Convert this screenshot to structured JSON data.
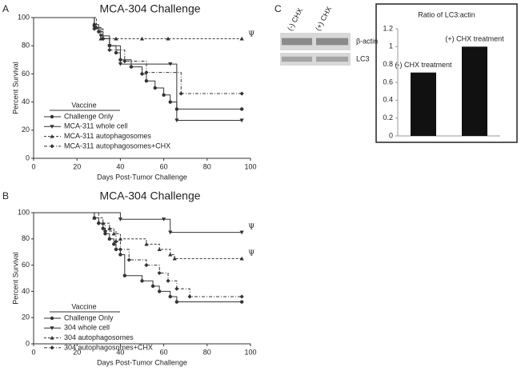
{
  "chart_data": [
    {
      "type": "step",
      "panel": "A",
      "title": "MCA-304 Challenge",
      "xlabel": "Days Post-Tumor Challenge",
      "ylabel": "Percent Survival",
      "xlim": [
        0,
        100
      ],
      "xticks": [
        0,
        20,
        40,
        60,
        80,
        100
      ],
      "ylim": [
        0,
        100
      ],
      "yticks": [
        0,
        20,
        40,
        60,
        80,
        100
      ],
      "legend_title": "Vaccine",
      "series": [
        {
          "name": "Challenge Only",
          "color": "#333333",
          "marker": "circle",
          "dash": "solid",
          "x": [
            0,
            28,
            30,
            32,
            35,
            38,
            40,
            45,
            50,
            52,
            56,
            60,
            63,
            66,
            96
          ],
          "values": [
            100,
            95,
            90,
            85,
            80,
            75,
            70,
            65,
            60,
            55,
            50,
            45,
            40,
            35,
            35
          ]
        },
        {
          "name": "MCA-311 whole cell",
          "color": "#333333",
          "marker": "triangle-down",
          "dash": "solid",
          "x": [
            0,
            28,
            31,
            35,
            40,
            63,
            66,
            96
          ],
          "values": [
            100,
            93,
            87,
            80,
            67,
            67,
            27,
            27
          ]
        },
        {
          "name": "MCA-311 autophagosomes",
          "color": "#333333",
          "marker": "triangle-up",
          "dash": "dashed",
          "x": [
            0,
            29,
            31,
            38,
            50,
            62,
            96
          ],
          "values": [
            100,
            93,
            85,
            85,
            85,
            85,
            85
          ]
        },
        {
          "name": "MCA-311 autophagosomes+CHX",
          "color": "#333333",
          "marker": "diamond",
          "dash": "dashdot",
          "x": [
            0,
            28,
            32,
            35,
            42,
            52,
            68,
            96
          ],
          "values": [
            100,
            92,
            85,
            77,
            69,
            61,
            46,
            46
          ]
        }
      ],
      "annotations": [
        {
          "text": "Ψ",
          "x": 99,
          "y": 88
        }
      ]
    },
    {
      "type": "step",
      "panel": "B",
      "title": "MCA-304 Challenge",
      "xlabel": "Days Post-Tumor Challenge",
      "ylabel": "Percent Survival",
      "xlim": [
        0,
        100
      ],
      "xticks": [
        0,
        20,
        40,
        60,
        80,
        100
      ],
      "ylim": [
        0,
        100
      ],
      "yticks": [
        0,
        20,
        40,
        60,
        80,
        100
      ],
      "legend_title": "Vaccine",
      "series": [
        {
          "name": "Challenge Only",
          "color": "#333333",
          "marker": "circle",
          "dash": "solid",
          "x": [
            0,
            28,
            30,
            32,
            33,
            35,
            37,
            38,
            40,
            42,
            50,
            55,
            58,
            63,
            66,
            96
          ],
          "values": [
            100,
            96,
            92,
            88,
            84,
            80,
            76,
            72,
            68,
            52,
            48,
            44,
            40,
            36,
            32,
            32
          ]
        },
        {
          "name": "304 whole cell",
          "color": "#333333",
          "marker": "triangle-down",
          "dash": "solid",
          "x": [
            0,
            40,
            60,
            63,
            96
          ],
          "values": [
            100,
            95,
            95,
            85,
            85
          ]
        },
        {
          "name": "304 autophagosomes",
          "color": "#333333",
          "marker": "triangle-up",
          "dash": "dashed",
          "x": [
            0,
            28,
            32,
            35,
            37,
            40,
            52,
            58,
            63,
            65,
            96
          ],
          "values": [
            100,
            96,
            92,
            88,
            84,
            80,
            76,
            72,
            68,
            65,
            65
          ]
        },
        {
          "name": "304 autophagosomes+CHX",
          "color": "#333333",
          "marker": "diamond",
          "dash": "dashdot",
          "x": [
            0,
            30,
            33,
            38,
            40,
            44,
            52,
            58,
            62,
            66,
            72,
            96
          ],
          "values": [
            100,
            92,
            86,
            78,
            72,
            64,
            60,
            54,
            48,
            42,
            36,
            36
          ]
        }
      ],
      "annotations": [
        {
          "text": "Ψ",
          "x": 99,
          "y": 89
        },
        {
          "text": "Ψ",
          "x": 99,
          "y": 69
        }
      ]
    },
    {
      "type": "bar",
      "panel": "C",
      "title": "Ratio of LC3:actin",
      "color": "#111111",
      "blot_lanes": [
        "(-) CHX",
        "(+) CHX"
      ],
      "blot_bands": [
        "β-actin",
        "LC3"
      ],
      "categories": [
        "(-) CHX treatment",
        "(+) CHX treatment"
      ],
      "values": [
        0.71,
        1
      ],
      "ylim": [
        0,
        1.2
      ],
      "yticks": [
        0,
        0.2,
        0.4,
        0.6,
        0.8,
        1,
        1.2
      ]
    }
  ]
}
